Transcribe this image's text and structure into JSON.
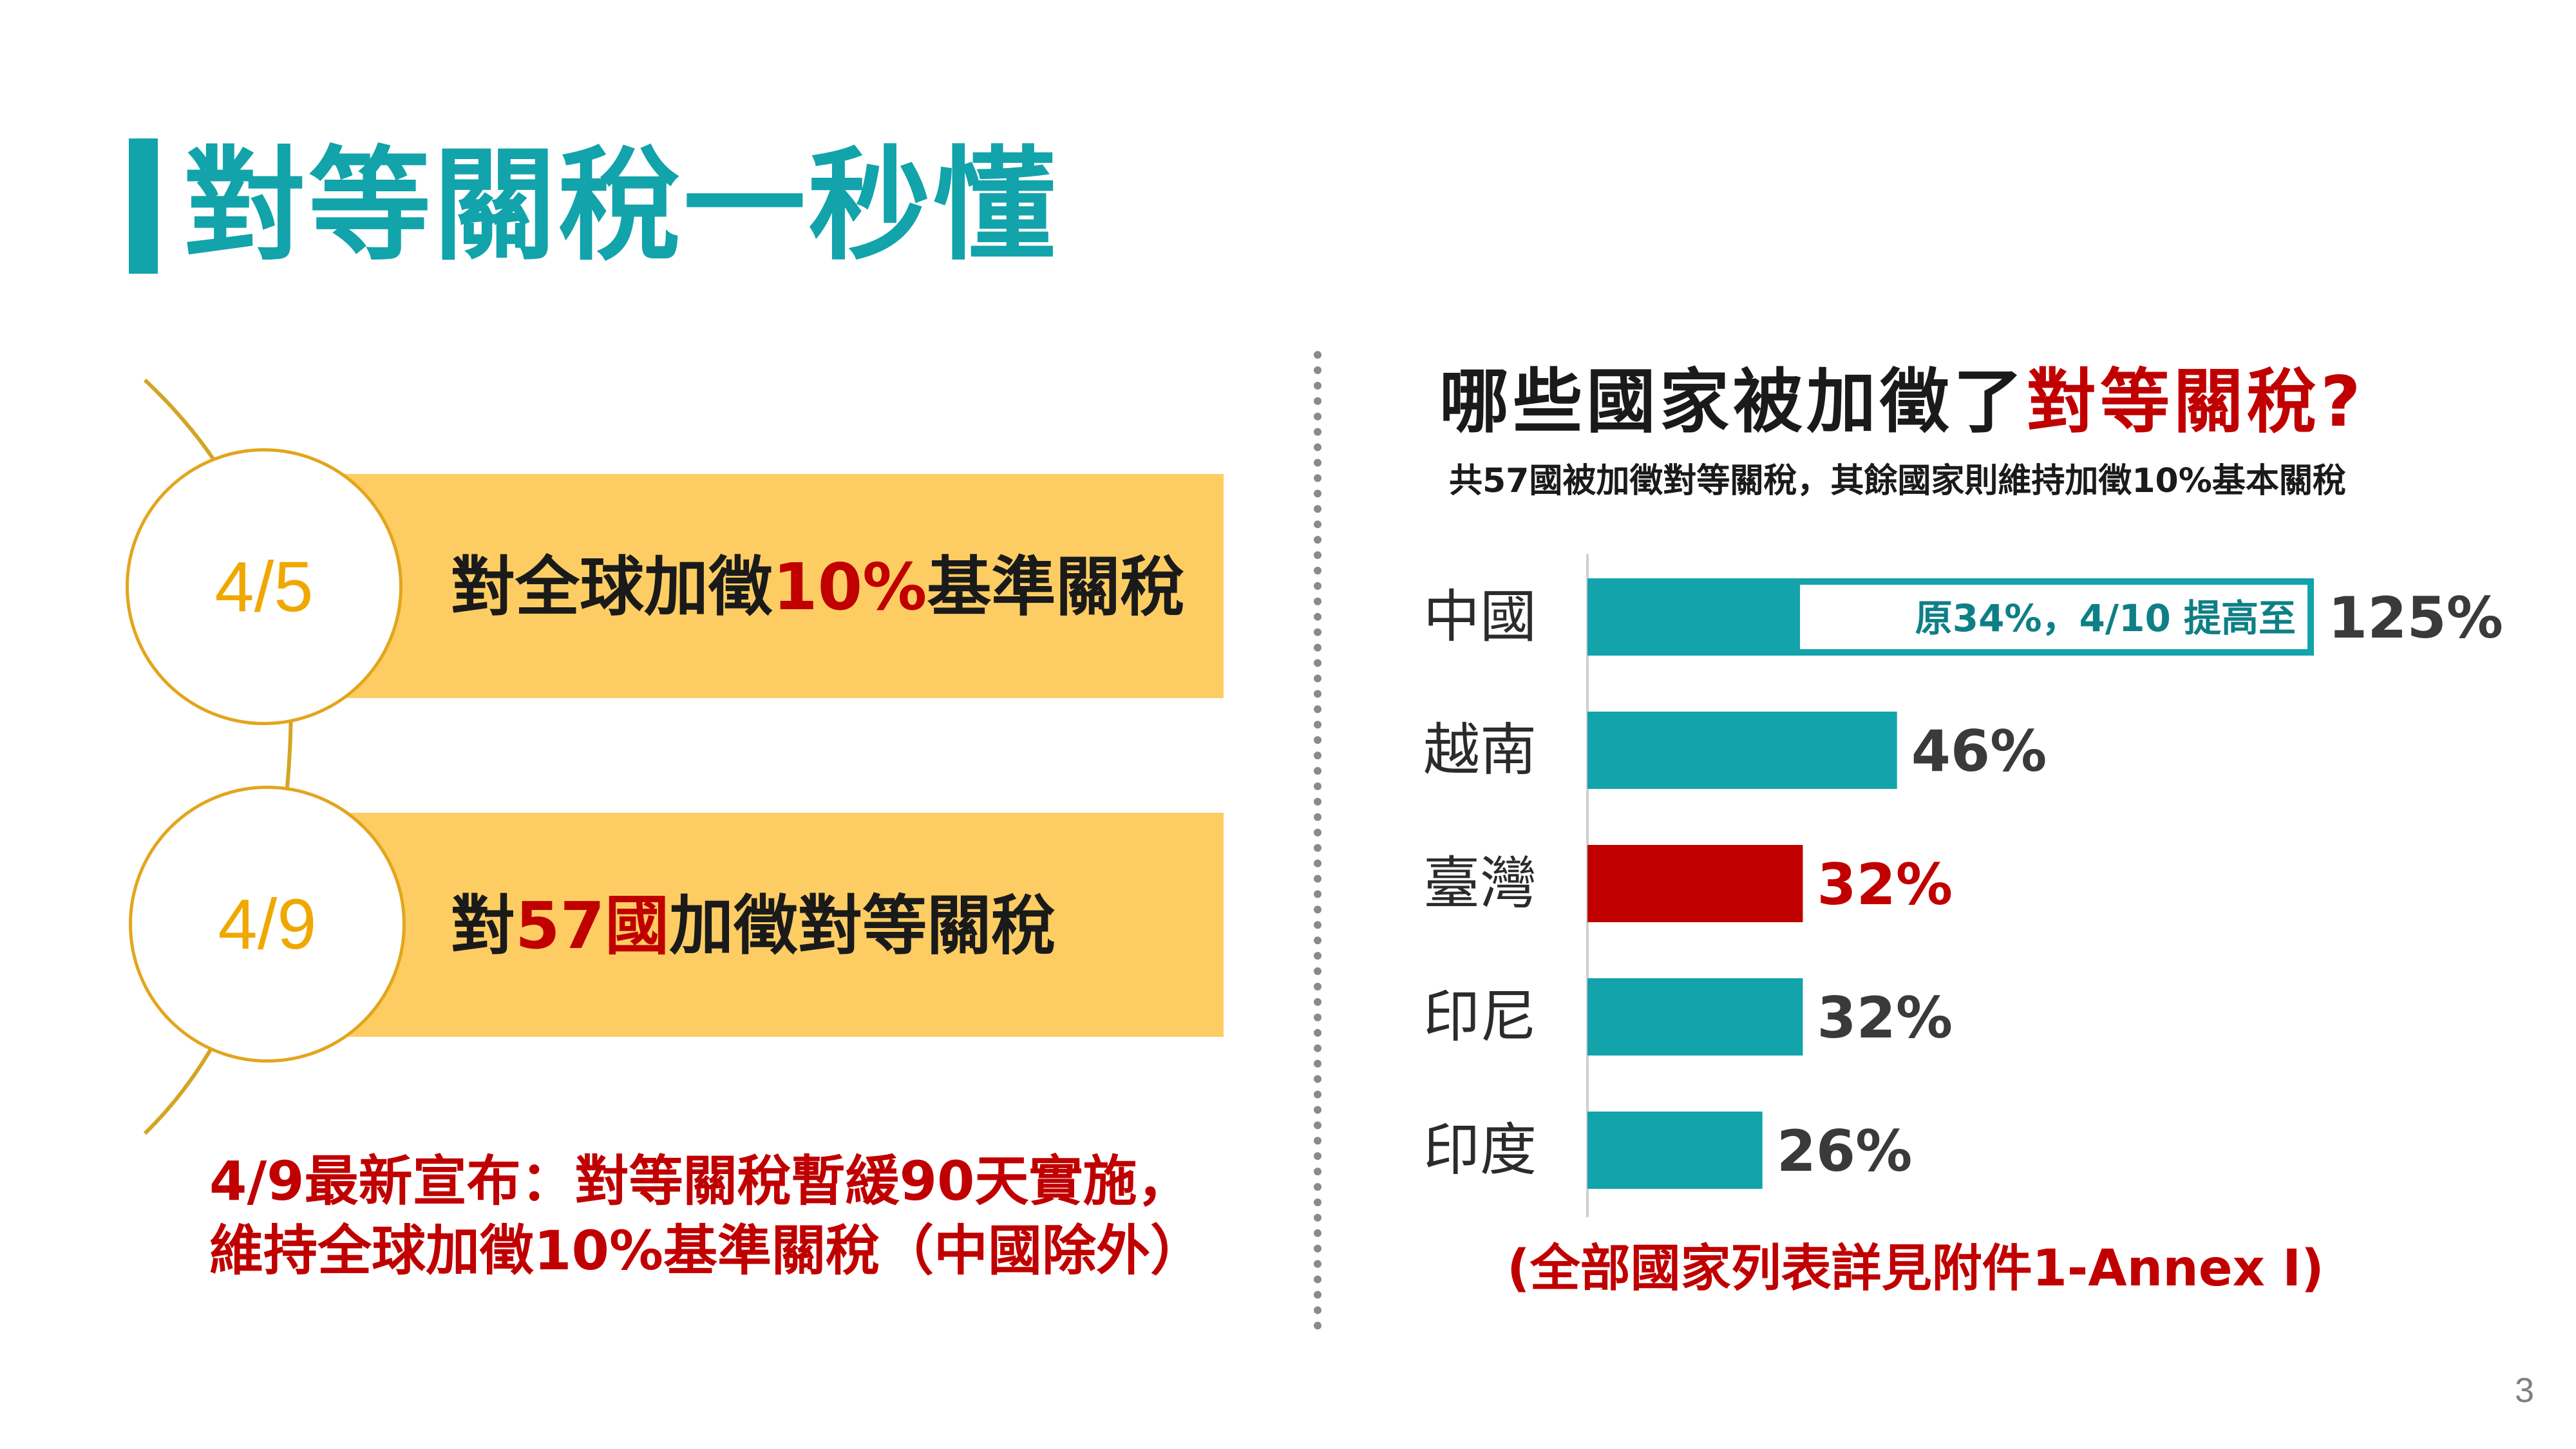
{
  "title": "對等關稅一秒懂",
  "colors": {
    "teal": "#12a3ab",
    "red": "#c00000",
    "gold": "#fdcd63",
    "circle_border": "#e3a51c"
  },
  "timeline": [
    {
      "date": "4/5",
      "text_pre": "對全球加徵",
      "text_highlight": "10%",
      "text_post": "基準關稅"
    },
    {
      "date": "4/9",
      "text_pre": "對",
      "text_highlight": "57國",
      "text_post": "加徵對等關稅"
    }
  ],
  "note_line1": "4/9最新宣布：對等關稅暫緩90天實施，",
  "note_line2": "維持全球加徵10%基準關稅（中國除外）",
  "chart_title_pre": "哪些國家被加徵了",
  "chart_title_highlight": "對等關稅?",
  "chart_subtitle": "共57國被加徵對等關稅，其餘國家則維持加徵10%基本關稅",
  "chart_footnote": "(全部國家列表詳見附件1-Annex I)",
  "page_number": "3",
  "chart_data": {
    "type": "bar",
    "orientation": "horizontal",
    "categories": [
      "中國",
      "越南",
      "臺灣",
      "印尼",
      "印度"
    ],
    "values": [
      125,
      46,
      32,
      32,
      26
    ],
    "value_labels": [
      "125%",
      "46%",
      "32%",
      "32%",
      "26%"
    ],
    "highlight": "臺灣",
    "annotation": "原34%，4/10 提高至",
    "previous_value": {
      "category": "中國",
      "value": 34
    },
    "grid": false,
    "legend": "none"
  }
}
